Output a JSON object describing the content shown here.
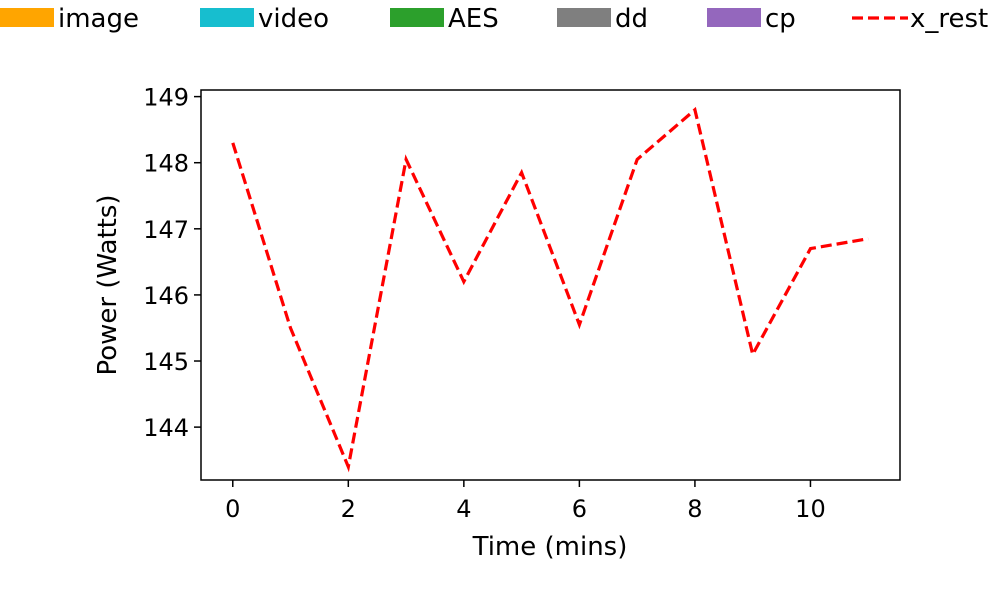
{
  "chart_data": {
    "type": "line",
    "title": "",
    "xlabel": "Time (mins)",
    "ylabel": "Power (Watts)",
    "xlim": [
      -0.55,
      11.55
    ],
    "ylim": [
      143.2,
      149.1
    ],
    "xticks": [
      0,
      2,
      4,
      6,
      8,
      10
    ],
    "xtick_labels": [
      "0",
      "2",
      "4",
      "6",
      "8",
      "10"
    ],
    "yticks": [
      144,
      145,
      146,
      147,
      148,
      149
    ],
    "ytick_labels": [
      "144",
      "145",
      "146",
      "147",
      "148",
      "149"
    ],
    "grid": false,
    "legend_position": "top",
    "legend": [
      {
        "label": "image",
        "color": "#ffa500",
        "kind": "patch"
      },
      {
        "label": "video",
        "color": "#17becf",
        "kind": "patch"
      },
      {
        "label": "AES",
        "color": "#2ca02c",
        "kind": "patch"
      },
      {
        "label": "dd",
        "color": "#7f7f7f",
        "kind": "patch"
      },
      {
        "label": "cp",
        "color": "#9467bd",
        "kind": "patch"
      },
      {
        "label": "x_rest",
        "color": "#ff0000",
        "kind": "dashed-line"
      }
    ],
    "series": [
      {
        "name": "x_rest",
        "color": "#ff0000",
        "style": "dashed",
        "x": [
          0,
          1,
          2,
          3,
          4,
          5,
          6,
          7,
          8,
          9,
          10,
          11
        ],
        "y": [
          148.3,
          145.5,
          143.4,
          148.05,
          146.2,
          147.85,
          145.55,
          148.05,
          148.8,
          145.1,
          146.7,
          146.85
        ]
      }
    ]
  }
}
